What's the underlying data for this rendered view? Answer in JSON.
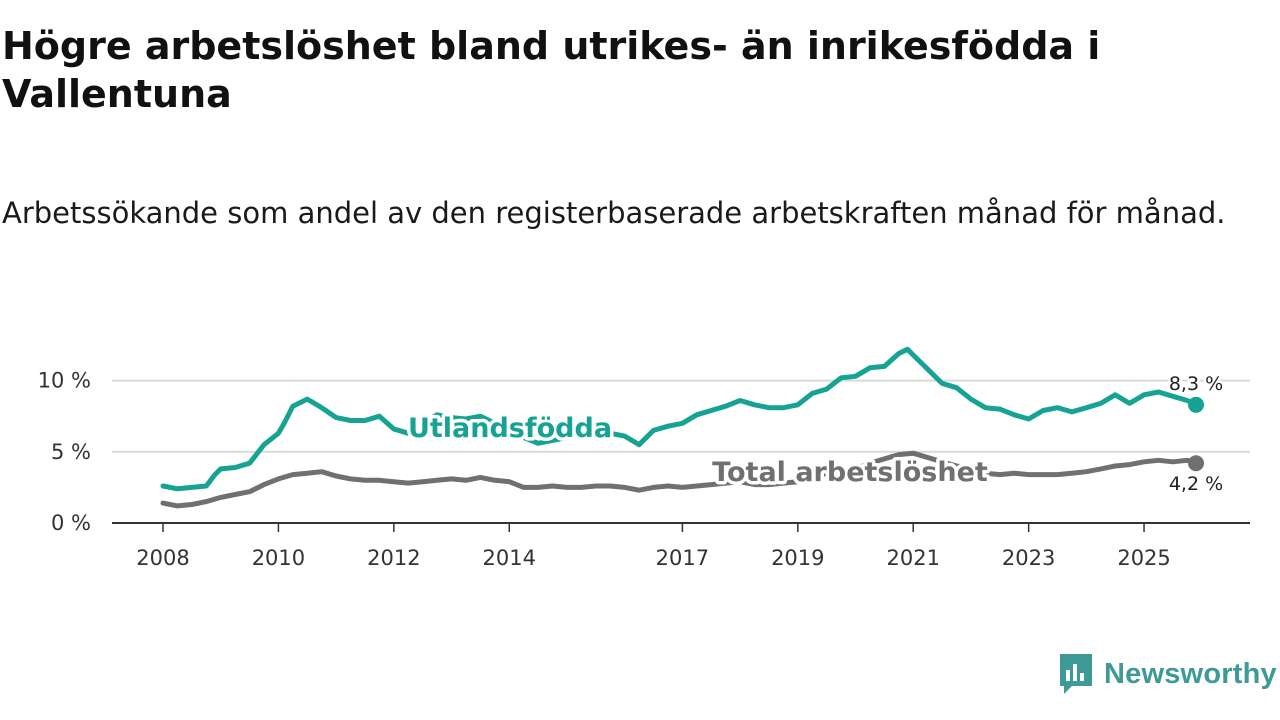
{
  "header": {
    "title": "Högre arbetslöshet bland utrikes- än inrikesfödda i Vallentuna",
    "subtitle": "Arbetssökande som andel av den registerbaserade arbetskraften månad för månad."
  },
  "brand": {
    "name": "Newsworthy",
    "icon": "newsworthy-logo-icon",
    "color": "#3d9a96"
  },
  "chart_data": {
    "type": "line",
    "title": "Högre arbetslöshet bland utrikes- än inrikesfödda i Vallentuna",
    "subtitle": "Arbetssökande som andel av den registerbaserade arbetskraften månad för månad.",
    "xlabel": "",
    "ylabel": "",
    "xlim": [
      2008,
      2025.9
    ],
    "ylim": [
      0,
      12.5
    ],
    "grid": true,
    "y_ticks": [
      {
        "value": 0,
        "label": "0 %"
      },
      {
        "value": 5,
        "label": "5 %"
      },
      {
        "value": 10,
        "label": "10 %"
      }
    ],
    "x_ticks": [
      {
        "value": 2008,
        "label": "2008"
      },
      {
        "value": 2010,
        "label": "2010"
      },
      {
        "value": 2012,
        "label": "2012"
      },
      {
        "value": 2014,
        "label": "2014"
      },
      {
        "value": 2017,
        "label": "2017"
      },
      {
        "value": 2019,
        "label": "2019"
      },
      {
        "value": 2021,
        "label": "2021"
      },
      {
        "value": 2023,
        "label": "2023"
      },
      {
        "value": 2025,
        "label": "2025"
      }
    ],
    "series": [
      {
        "name": "Utlandsfödda",
        "color": "#16a394",
        "end_label": "8,3 %",
        "points": [
          [
            2008.0,
            2.6
          ],
          [
            2008.25,
            2.4
          ],
          [
            2008.5,
            2.5
          ],
          [
            2008.75,
            2.6
          ],
          [
            2008.9,
            3.4
          ],
          [
            2009.0,
            3.8
          ],
          [
            2009.25,
            3.9
          ],
          [
            2009.5,
            4.2
          ],
          [
            2009.75,
            5.5
          ],
          [
            2010.0,
            6.3
          ],
          [
            2010.1,
            7.0
          ],
          [
            2010.25,
            8.2
          ],
          [
            2010.5,
            8.7
          ],
          [
            2010.75,
            8.1
          ],
          [
            2011.0,
            7.4
          ],
          [
            2011.25,
            7.2
          ],
          [
            2011.5,
            7.2
          ],
          [
            2011.75,
            7.5
          ],
          [
            2012.0,
            6.6
          ],
          [
            2012.25,
            6.3
          ],
          [
            2012.5,
            7.0
          ],
          [
            2012.75,
            7.6
          ],
          [
            2013.0,
            7.4
          ],
          [
            2013.25,
            7.3
          ],
          [
            2013.5,
            7.5
          ],
          [
            2013.75,
            7.0
          ],
          [
            2014.0,
            6.6
          ],
          [
            2014.25,
            6.0
          ],
          [
            2014.5,
            5.6
          ],
          [
            2014.75,
            5.8
          ],
          [
            2015.0,
            6.0
          ],
          [
            2015.25,
            6.2
          ],
          [
            2015.5,
            6.1
          ],
          [
            2015.75,
            6.3
          ],
          [
            2016.0,
            6.1
          ],
          [
            2016.25,
            5.5
          ],
          [
            2016.5,
            6.5
          ],
          [
            2016.75,
            6.8
          ],
          [
            2017.0,
            7.0
          ],
          [
            2017.25,
            7.6
          ],
          [
            2017.5,
            7.9
          ],
          [
            2017.75,
            8.2
          ],
          [
            2018.0,
            8.6
          ],
          [
            2018.25,
            8.3
          ],
          [
            2018.5,
            8.1
          ],
          [
            2018.75,
            8.1
          ],
          [
            2019.0,
            8.3
          ],
          [
            2019.25,
            9.1
          ],
          [
            2019.5,
            9.4
          ],
          [
            2019.75,
            10.2
          ],
          [
            2020.0,
            10.3
          ],
          [
            2020.25,
            10.9
          ],
          [
            2020.5,
            11.0
          ],
          [
            2020.75,
            11.9
          ],
          [
            2020.9,
            12.2
          ],
          [
            2021.0,
            11.8
          ],
          [
            2021.25,
            10.8
          ],
          [
            2021.5,
            9.8
          ],
          [
            2021.75,
            9.5
          ],
          [
            2022.0,
            8.7
          ],
          [
            2022.25,
            8.1
          ],
          [
            2022.5,
            8.0
          ],
          [
            2022.75,
            7.6
          ],
          [
            2023.0,
            7.3
          ],
          [
            2023.25,
            7.9
          ],
          [
            2023.5,
            8.1
          ],
          [
            2023.75,
            7.8
          ],
          [
            2024.0,
            8.1
          ],
          [
            2024.25,
            8.4
          ],
          [
            2024.5,
            9.0
          ],
          [
            2024.75,
            8.4
          ],
          [
            2025.0,
            9.0
          ],
          [
            2025.25,
            9.2
          ],
          [
            2025.5,
            8.9
          ],
          [
            2025.75,
            8.6
          ],
          [
            2025.9,
            8.3
          ]
        ]
      },
      {
        "name": "Total arbetslöshet",
        "color": "#707070",
        "end_label": "4,2 %",
        "points": [
          [
            2008.0,
            1.4
          ],
          [
            2008.25,
            1.2
          ],
          [
            2008.5,
            1.3
          ],
          [
            2008.75,
            1.5
          ],
          [
            2009.0,
            1.8
          ],
          [
            2009.25,
            2.0
          ],
          [
            2009.5,
            2.2
          ],
          [
            2009.75,
            2.7
          ],
          [
            2010.0,
            3.1
          ],
          [
            2010.25,
            3.4
          ],
          [
            2010.5,
            3.5
          ],
          [
            2010.75,
            3.6
          ],
          [
            2011.0,
            3.3
          ],
          [
            2011.25,
            3.1
          ],
          [
            2011.5,
            3.0
          ],
          [
            2011.75,
            3.0
          ],
          [
            2012.0,
            2.9
          ],
          [
            2012.25,
            2.8
          ],
          [
            2012.5,
            2.9
          ],
          [
            2012.75,
            3.0
          ],
          [
            2013.0,
            3.1
          ],
          [
            2013.25,
            3.0
          ],
          [
            2013.5,
            3.2
          ],
          [
            2013.75,
            3.0
          ],
          [
            2014.0,
            2.9
          ],
          [
            2014.25,
            2.5
          ],
          [
            2014.5,
            2.5
          ],
          [
            2014.75,
            2.6
          ],
          [
            2015.0,
            2.5
          ],
          [
            2015.25,
            2.5
          ],
          [
            2015.5,
            2.6
          ],
          [
            2015.75,
            2.6
          ],
          [
            2016.0,
            2.5
          ],
          [
            2016.25,
            2.3
          ],
          [
            2016.5,
            2.5
          ],
          [
            2016.75,
            2.6
          ],
          [
            2017.0,
            2.5
          ],
          [
            2017.25,
            2.6
          ],
          [
            2017.5,
            2.7
          ],
          [
            2017.75,
            2.8
          ],
          [
            2018.0,
            2.9
          ],
          [
            2018.25,
            2.7
          ],
          [
            2018.5,
            2.7
          ],
          [
            2018.75,
            2.8
          ],
          [
            2019.0,
            2.9
          ],
          [
            2019.25,
            3.2
          ],
          [
            2019.5,
            3.5
          ],
          [
            2019.75,
            3.7
          ],
          [
            2020.0,
            3.8
          ],
          [
            2020.25,
            4.2
          ],
          [
            2020.5,
            4.5
          ],
          [
            2020.75,
            4.8
          ],
          [
            2021.0,
            4.9
          ],
          [
            2021.25,
            4.6
          ],
          [
            2021.5,
            4.3
          ],
          [
            2021.75,
            4.0
          ],
          [
            2022.0,
            3.8
          ],
          [
            2022.25,
            3.5
          ],
          [
            2022.5,
            3.4
          ],
          [
            2022.75,
            3.5
          ],
          [
            2023.0,
            3.4
          ],
          [
            2023.25,
            3.4
          ],
          [
            2023.5,
            3.4
          ],
          [
            2023.75,
            3.5
          ],
          [
            2024.0,
            3.6
          ],
          [
            2024.25,
            3.8
          ],
          [
            2024.5,
            4.0
          ],
          [
            2024.75,
            4.1
          ],
          [
            2025.0,
            4.3
          ],
          [
            2025.25,
            4.4
          ],
          [
            2025.5,
            4.3
          ],
          [
            2025.75,
            4.4
          ],
          [
            2025.9,
            4.2
          ]
        ]
      }
    ]
  }
}
